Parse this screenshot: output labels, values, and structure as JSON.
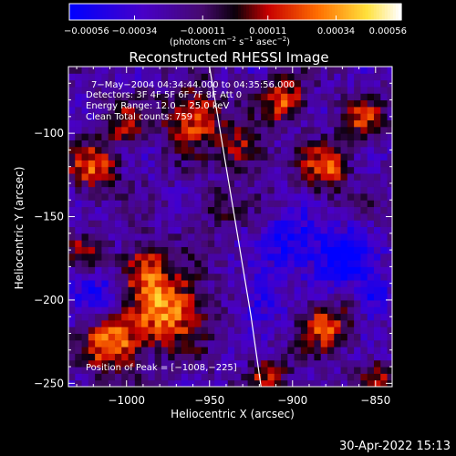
{
  "chart_data": {
    "type": "heatmap",
    "title": "Reconstructed RHESSI Image",
    "xlabel": "Heliocentric X (arcsec)",
    "ylabel": "Heliocentric Y (arcsec)",
    "xlim": [
      -1035,
      -840
    ],
    "ylim": [
      -252,
      -60
    ],
    "x_ticks": [
      -1000,
      -950,
      -900,
      -850
    ],
    "x_tick_labels": [
      "−1000",
      "−950",
      "−900",
      "−850"
    ],
    "y_ticks": [
      -100,
      -150,
      -200,
      -250
    ],
    "y_tick_labels": [
      "−100",
      "−150",
      "−200",
      "−250"
    ],
    "colorbar": {
      "range": [
        -0.00056,
        0.00056
      ],
      "ticks": [
        -0.00056,
        -0.00034,
        -0.00011,
        0.00011,
        0.00034,
        0.00056
      ],
      "tick_labels": [
        "−0.00056",
        "−0.00034",
        "−0.00011",
        "0.00011",
        "0.00034",
        "0.00056"
      ],
      "units_prefix": "(photons cm",
      "units_exp1": "−2",
      "units_mid1": " s",
      "units_exp2": "−1",
      "units_mid2": " asec",
      "units_exp3": "−2",
      "units_suffix": ")"
    },
    "annotations": [
      "7−May−2004 04:34:44.000 to 04:35:56.000",
      "Detectors: 3F 4F 5F 6F 7F 8F  Att 0",
      "Energy Range: 12.0 − 25.0 keV",
      "Clean     Total counts: 759"
    ],
    "peak_label": "Position of Peak = [−1008,−225]",
    "limb_curve": [
      [
        -950,
        -60
      ],
      [
        -945,
        -90
      ],
      [
        -940,
        -120
      ],
      [
        -935,
        -150
      ],
      [
        -930,
        -180
      ],
      [
        -925,
        -210
      ],
      [
        -919,
        -252
      ]
    ],
    "sources": [
      {
        "x": -975,
        "y": -205,
        "amp": 0.00056,
        "sigma": 15
      },
      {
        "x": -1008,
        "y": -225,
        "amp": 0.00056,
        "sigma": 12
      },
      {
        "x": -990,
        "y": -180,
        "amp": 0.0004,
        "sigma": 10
      },
      {
        "x": -960,
        "y": -90,
        "amp": 0.00048,
        "sigma": 12
      },
      {
        "x": -1020,
        "y": -120,
        "amp": 0.00042,
        "sigma": 10
      },
      {
        "x": -1000,
        "y": -95,
        "amp": 0.0003,
        "sigma": 9
      },
      {
        "x": -905,
        "y": -80,
        "amp": 0.00045,
        "sigma": 9
      },
      {
        "x": -880,
        "y": -120,
        "amp": 0.00042,
        "sigma": 10
      },
      {
        "x": -858,
        "y": -90,
        "amp": 0.00036,
        "sigma": 8
      },
      {
        "x": -930,
        "y": -110,
        "amp": 0.00036,
        "sigma": 9
      },
      {
        "x": -880,
        "y": -215,
        "amp": 0.00044,
        "sigma": 10
      },
      {
        "x": -915,
        "y": -245,
        "amp": 0.00034,
        "sigma": 8
      },
      {
        "x": -945,
        "y": -145,
        "amp": 0.00024,
        "sigma": 8
      },
      {
        "x": -1025,
        "y": -170,
        "amp": 0.00024,
        "sigma": 7
      },
      {
        "x": -850,
        "y": -245,
        "amp": 0.0003,
        "sigma": 7
      },
      {
        "x": -870,
        "y": -175,
        "amp": -0.0004,
        "sigma": 12
      },
      {
        "x": -900,
        "y": -165,
        "amp": -0.0003,
        "sigma": 12
      },
      {
        "x": -920,
        "y": -200,
        "amp": -0.00025,
        "sigma": 10
      },
      {
        "x": -1015,
        "y": -200,
        "amp": -0.00025,
        "sigma": 12
      },
      {
        "x": -850,
        "y": -200,
        "amp": -0.0003,
        "sigma": 8
      }
    ]
  },
  "footer": {
    "timestamp": "30-Apr-2022 15:13"
  }
}
